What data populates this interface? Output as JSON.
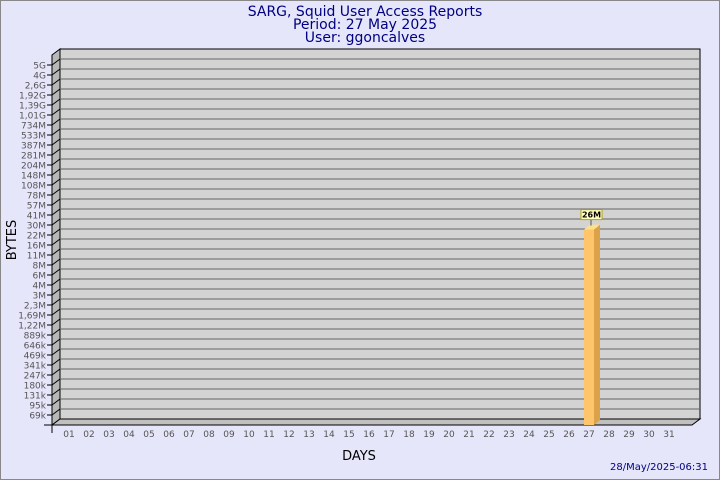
{
  "chart_data": {
    "type": "bar",
    "title": "SARG, Squid User Access Reports",
    "subtitle_lines": [
      "Period: 27 May 2025",
      "User: ggoncalves"
    ],
    "xlabel": "DAYS",
    "ylabel": "BYTES",
    "y_scale": "log",
    "categories": [
      "01",
      "02",
      "03",
      "04",
      "05",
      "06",
      "07",
      "08",
      "09",
      "10",
      "11",
      "12",
      "13",
      "14",
      "15",
      "16",
      "17",
      "18",
      "19",
      "20",
      "21",
      "22",
      "23",
      "24",
      "25",
      "26",
      "27",
      "28",
      "29",
      "30",
      "31"
    ],
    "y_ticks": [
      "5G",
      "4G",
      "2,6G",
      "1,92G",
      "1,39G",
      "1,01G",
      "734M",
      "533M",
      "387M",
      "281M",
      "204M",
      "148M",
      "108M",
      "78M",
      "57M",
      "41M",
      "30M",
      "22M",
      "16M",
      "11M",
      "8M",
      "6M",
      "4M",
      "3M",
      "2,3M",
      "1,69M",
      "1,22M",
      "889k",
      "646k",
      "469k",
      "341k",
      "247k",
      "180k",
      "131k",
      "95k",
      "69k"
    ],
    "bars": [
      {
        "category": "27",
        "value": 26000000,
        "label": "26M"
      }
    ],
    "grid": true,
    "colors": {
      "background": "#e6e6fa",
      "plot": "#d3d3d3",
      "bar": "#ffc56b",
      "bar_side": "#dba24a",
      "title": "#000080",
      "label_box": "#ffffc0"
    },
    "footer": "28/May/2025-06:31"
  }
}
